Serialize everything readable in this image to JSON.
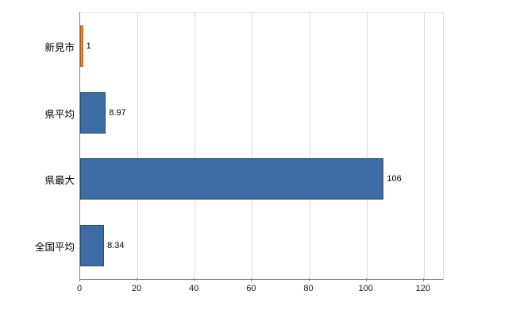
{
  "chart_data": {
    "type": "bar",
    "orientation": "horizontal",
    "title": "",
    "xlabel": "",
    "ylabel": "",
    "categories": [
      "新見市",
      "県平均",
      "県最大",
      "全国平均"
    ],
    "values": [
      1,
      8.97,
      106,
      8.34
    ],
    "value_labels": [
      "1",
      "8.97",
      "106",
      "8.34"
    ],
    "bar_colors": [
      "#ef8428",
      "#3d6ca5",
      "#3d6ca5",
      "#3d6ca5"
    ],
    "bar_border_colors": [
      "#b85c0a",
      "#274e75",
      "#274e75",
      "#274e75"
    ],
    "xlim": [
      0,
      126.7
    ],
    "x_ticks": [
      0,
      20,
      40,
      60,
      80,
      100,
      120
    ],
    "x_tick_labels": [
      "0",
      "20",
      "40",
      "60",
      "80",
      "100",
      "120"
    ],
    "grid": true,
    "legend": "none",
    "colors": {
      "background": "#ffffff",
      "gridline": "#d9d9d9",
      "axis_line": "#808080",
      "text": "#000000"
    }
  }
}
